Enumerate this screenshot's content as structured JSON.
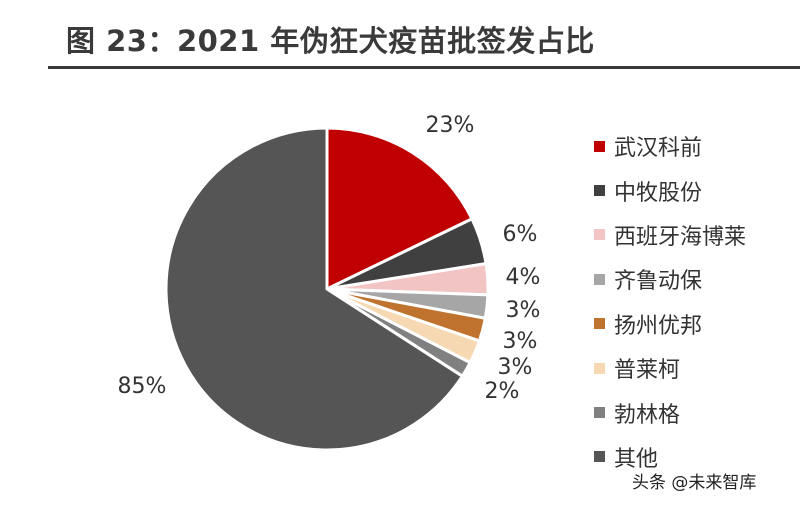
{
  "title": "图 23：2021 年伪狂犬疫苗批签发占比",
  "watermark": "头条 @未来智库",
  "chart_data": {
    "type": "pie",
    "title": "图 23：2021 年伪狂犬疫苗批签发占比",
    "series": [
      {
        "name": "武汉科前",
        "value": 23,
        "label": "23%",
        "color": "#c00000"
      },
      {
        "name": "中牧股份",
        "value": 6,
        "label": "6%",
        "color": "#404040"
      },
      {
        "name": "西班牙海博莱",
        "value": 4,
        "label": "4%",
        "color": "#f2c4c4"
      },
      {
        "name": "齐鲁动保",
        "value": 3,
        "label": "3%",
        "color": "#a6a6a6"
      },
      {
        "name": "扬州优邦",
        "value": 3,
        "label": "3%",
        "color": "#c0722f"
      },
      {
        "name": "普莱柯",
        "value": 3,
        "label": "3%",
        "color": "#f6d9b2"
      },
      {
        "name": "勃林格",
        "value": 2,
        "label": "2%",
        "color": "#808080"
      },
      {
        "name": "其他",
        "value": 85,
        "label": "85%",
        "color": "#555555"
      }
    ],
    "legend_position": "right",
    "start_angle": "12 o'clock",
    "direction": "clockwise"
  }
}
